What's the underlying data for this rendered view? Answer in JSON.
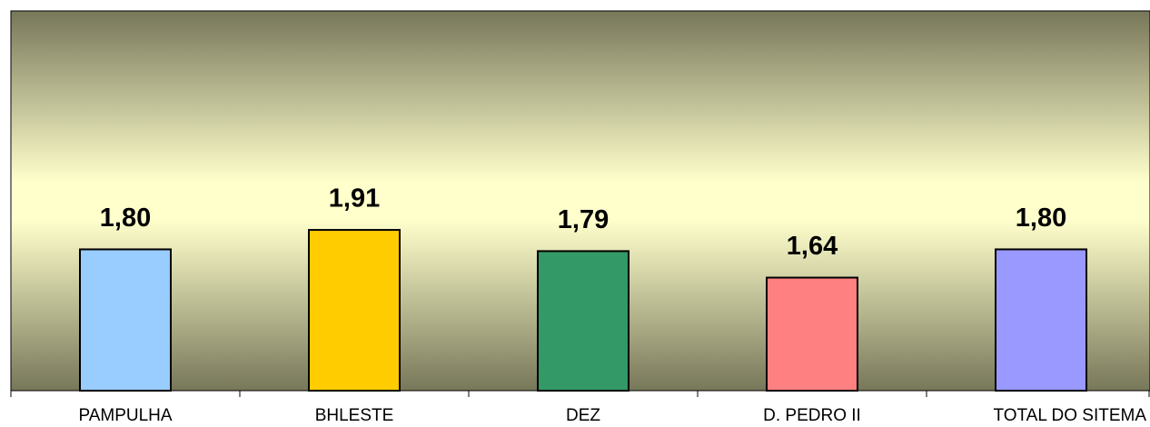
{
  "chart_data": {
    "type": "bar",
    "categories": [
      "PAMPULHA",
      "BHLESTE",
      "DEZ",
      "D. PEDRO II",
      "TOTAL DO SITEMA"
    ],
    "values": [
      1.8,
      1.91,
      1.79,
      1.64,
      1.8
    ],
    "value_labels": [
      "1,80",
      "1,91",
      "1,79",
      "1,64",
      "1,80"
    ],
    "colors": [
      "#99ccff",
      "#ffcc00",
      "#339966",
      "#ff8080",
      "#9999ff"
    ],
    "ylim": [
      1,
      3.15
    ]
  }
}
